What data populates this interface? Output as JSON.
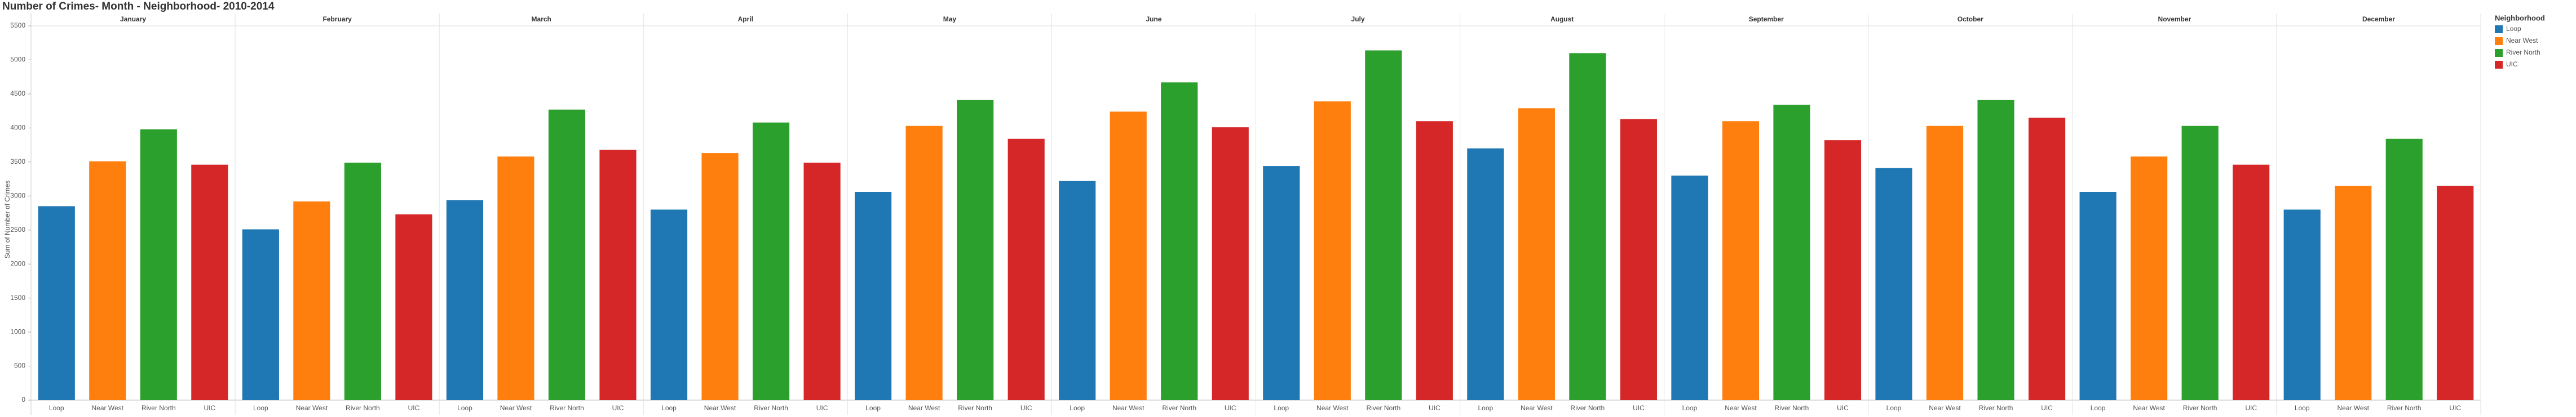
{
  "chart_data": {
    "type": "bar",
    "title": "Number of Crimes- Month - Neighborhood- 2010-2014",
    "y_label": "Sum of Number of Crimes",
    "legend_title": "Neighborhood",
    "legend_position": "right",
    "categories": [
      "January",
      "February",
      "March",
      "April",
      "May",
      "June",
      "July",
      "August",
      "September",
      "October",
      "November",
      "December"
    ],
    "series": [
      {
        "name": "Loop",
        "color": "#1f77b4",
        "values": [
          2850,
          2510,
          2940,
          2800,
          3060,
          3220,
          3440,
          3700,
          3300,
          3410,
          3060,
          2800
        ]
      },
      {
        "name": "Near West",
        "color": "#ff7f0e",
        "values": [
          3510,
          2920,
          3580,
          3630,
          4030,
          4240,
          4390,
          4290,
          4100,
          4030,
          3580,
          3150
        ]
      },
      {
        "name": "River North",
        "color": "#2ca02c",
        "values": [
          3980,
          3490,
          4270,
          4080,
          4410,
          4670,
          5140,
          5100,
          4340,
          4410,
          4030,
          3840
        ]
      },
      {
        "name": "UIC",
        "color": "#d62728",
        "values": [
          3460,
          2730,
          3680,
          3490,
          3840,
          4010,
          4100,
          4130,
          3820,
          4150,
          3460,
          3150
        ]
      }
    ],
    "ylim": [
      0,
      5500
    ],
    "yticks": [
      0,
      500,
      1000,
      1500,
      2000,
      2500,
      3000,
      3500,
      4000,
      4500,
      5000,
      5500
    ],
    "grid": false
  }
}
